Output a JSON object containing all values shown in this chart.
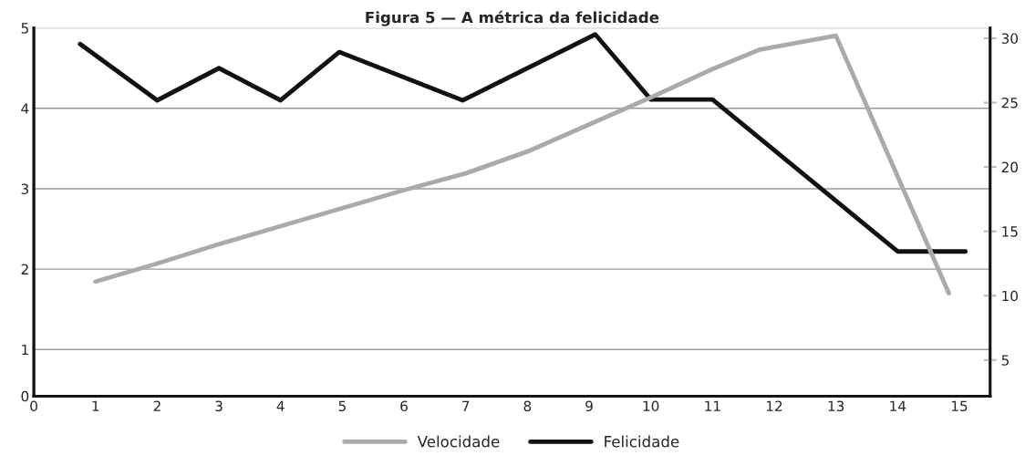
{
  "chart_data": {
    "type": "line",
    "title": "Figura 5 — A métrica da felicidade",
    "xlim": [
      0,
      15.5
    ],
    "xticks": [
      0,
      1,
      2,
      3,
      4,
      5,
      6,
      7,
      8,
      9,
      10,
      11,
      12,
      13,
      14,
      15
    ],
    "ylim": [
      0.42,
      5
    ],
    "yticks": [
      {
        "value": 0.42,
        "label": "0"
      },
      1,
      2,
      3,
      4,
      5
    ],
    "y2lim": [
      2.2,
      30.8
    ],
    "y2ticks": [
      5,
      10,
      15,
      20,
      25,
      30
    ],
    "grid": "y",
    "legend": "bottom",
    "marker": "none",
    "line_style": "solid",
    "series": [
      {
        "name": "Velocidade",
        "color": "#aaaaaa",
        "axis": "y2",
        "x": [
          1,
          2,
          3,
          4,
          5,
          6,
          7,
          8,
          9,
          10,
          11,
          11.75,
          13,
          14.83
        ],
        "values": [
          11.1,
          12.5,
          14,
          15.4,
          16.8,
          18.2,
          19.5,
          21.2,
          23.3,
          25.4,
          27.6,
          29.1,
          30.2,
          10.2
        ]
      },
      {
        "name": "Felicidade",
        "color": "#111111",
        "axis": "y",
        "x": [
          0.75,
          2,
          3,
          4,
          4.95,
          6.95,
          9.1,
          10,
          11,
          14,
          15.1
        ],
        "values": [
          4.8,
          4.1,
          4.5,
          4.1,
          4.7,
          4.1,
          4.92,
          4.11,
          4.11,
          2.22,
          2.22
        ]
      }
    ]
  }
}
